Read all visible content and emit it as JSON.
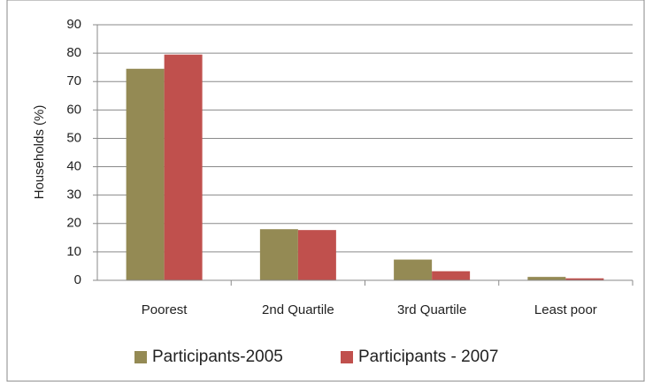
{
  "chart_data": {
    "type": "bar",
    "y_label": "Households (%)",
    "categories": [
      "Poorest",
      "2nd Quartile",
      "3rd Quartile",
      "Least poor"
    ],
    "series": [
      {
        "name": "Participants-2005",
        "color": "#948a54",
        "values": [
          74.5,
          18,
          7.3,
          1.2
        ]
      },
      {
        "name": "Participants - 2007",
        "color": "#c0504d",
        "values": [
          79.5,
          17.7,
          3.2,
          0.7
        ]
      }
    ],
    "ylim": [
      0,
      90
    ],
    "yticks": [
      0,
      10,
      20,
      30,
      40,
      50,
      60,
      70,
      80,
      90
    ],
    "grid": true,
    "legend": "bottom"
  }
}
